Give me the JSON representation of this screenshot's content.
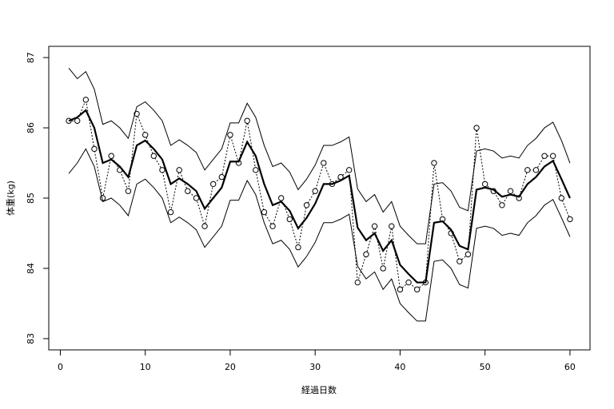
{
  "chart_data": {
    "type": "line",
    "xlabel": "経過日数",
    "ylabel": "体重(kg)",
    "x": [
      1,
      2,
      3,
      4,
      5,
      6,
      7,
      8,
      9,
      10,
      11,
      12,
      13,
      14,
      15,
      16,
      17,
      18,
      19,
      20,
      21,
      22,
      23,
      24,
      25,
      26,
      27,
      28,
      29,
      30,
      31,
      32,
      33,
      34,
      35,
      36,
      37,
      38,
      39,
      40,
      41,
      42,
      43,
      44,
      45,
      46,
      47,
      48,
      49,
      50,
      51,
      52,
      53,
      54,
      55,
      56,
      57,
      58,
      59,
      60
    ],
    "xlim": [
      -1.36,
      62.36
    ],
    "ylim": [
      82.84,
      87.16
    ],
    "xticks": [
      0,
      10,
      20,
      30,
      40,
      50,
      60
    ],
    "yticks": [
      83,
      84,
      85,
      86,
      87
    ],
    "series": [
      {
        "color": "#000000",
        "style": "dotted",
        "points": true,
        "width": 1,
        "values": [
          86.1,
          86.1,
          86.4,
          85.7,
          85.0,
          85.6,
          85.4,
          85.1,
          86.2,
          85.9,
          85.6,
          85.4,
          84.8,
          85.4,
          85.1,
          85.0,
          84.6,
          85.2,
          85.3,
          85.9,
          85.5,
          86.1,
          85.4,
          84.8,
          84.6,
          85.0,
          84.7,
          84.3,
          84.9,
          85.1,
          85.5,
          85.2,
          85.3,
          85.4,
          83.8,
          84.2,
          84.6,
          84.0,
          84.6,
          83.7,
          83.8,
          83.7,
          83.8,
          85.5,
          84.7,
          84.5,
          84.1,
          84.2,
          86.0,
          85.2,
          85.1,
          84.9,
          85.1,
          85.0,
          85.4,
          85.4,
          85.6,
          85.6,
          85.0,
          84.7
        ]
      },
      {
        "color": "#000000",
        "style": "solid",
        "points": false,
        "width": 2.2,
        "values": [
          86.1,
          86.15,
          86.25,
          86.0,
          85.5,
          85.55,
          85.45,
          85.3,
          85.75,
          85.82,
          85.7,
          85.55,
          85.2,
          85.28,
          85.2,
          85.1,
          84.85,
          85.0,
          85.15,
          85.52,
          85.52,
          85.8,
          85.6,
          85.2,
          84.9,
          84.95,
          84.82,
          84.57,
          84.72,
          84.92,
          85.2,
          85.2,
          85.25,
          85.32,
          84.58,
          84.4,
          84.5,
          84.25,
          84.4,
          84.05,
          83.92,
          83.8,
          83.8,
          84.65,
          84.67,
          84.55,
          84.32,
          84.27,
          85.12,
          85.15,
          85.12,
          85.02,
          85.05,
          85.02,
          85.2,
          85.3,
          85.45,
          85.53,
          85.27,
          85.0
        ]
      },
      {
        "color": "#000000",
        "style": "solid",
        "points": false,
        "width": 1,
        "values": [
          86.85,
          86.7,
          86.8,
          86.55,
          86.05,
          86.1,
          86.0,
          85.85,
          86.3,
          86.37,
          86.25,
          86.1,
          85.75,
          85.83,
          85.75,
          85.65,
          85.4,
          85.55,
          85.7,
          86.07,
          86.07,
          86.35,
          86.15,
          85.75,
          85.45,
          85.5,
          85.37,
          85.12,
          85.27,
          85.47,
          85.75,
          85.75,
          85.8,
          85.87,
          85.13,
          84.95,
          85.05,
          84.8,
          84.95,
          84.6,
          84.47,
          84.35,
          84.35,
          85.2,
          85.22,
          85.1,
          84.87,
          84.82,
          85.67,
          85.7,
          85.67,
          85.57,
          85.6,
          85.57,
          85.75,
          85.85,
          86.0,
          86.08,
          85.82,
          85.5
        ]
      },
      {
        "color": "#000000",
        "style": "solid",
        "points": false,
        "width": 1,
        "values": [
          85.35,
          85.5,
          85.7,
          85.45,
          84.95,
          85.0,
          84.9,
          84.75,
          85.2,
          85.27,
          85.15,
          85.0,
          84.65,
          84.73,
          84.65,
          84.55,
          84.3,
          84.45,
          84.6,
          84.97,
          84.97,
          85.25,
          85.05,
          84.65,
          84.35,
          84.4,
          84.27,
          84.02,
          84.17,
          84.37,
          84.65,
          84.65,
          84.7,
          84.77,
          84.03,
          83.85,
          83.95,
          83.7,
          83.85,
          83.5,
          83.37,
          83.25,
          83.25,
          84.1,
          84.12,
          84.0,
          83.77,
          83.72,
          84.57,
          84.6,
          84.57,
          84.47,
          84.5,
          84.47,
          84.65,
          84.75,
          84.9,
          84.98,
          84.72,
          84.45
        ]
      }
    ]
  }
}
